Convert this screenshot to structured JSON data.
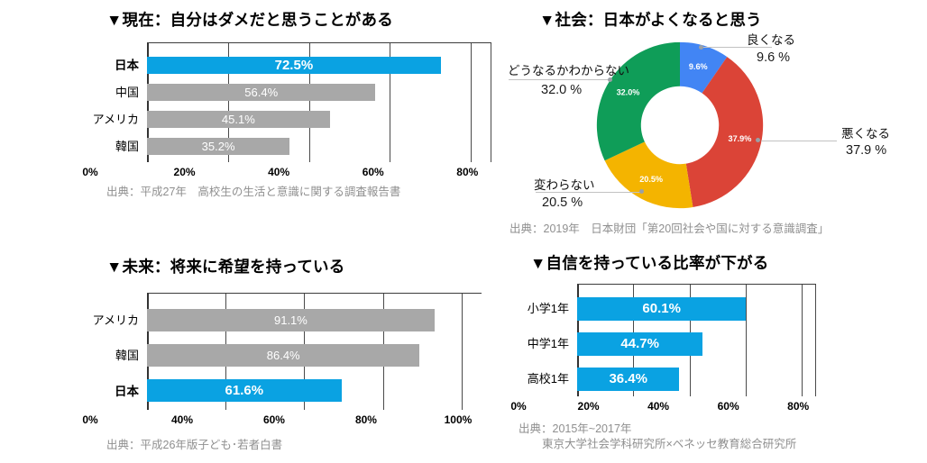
{
  "colors": {
    "accent_blue": "#0aa2e2",
    "bar_gray": "#a8a8a8",
    "donut_blue": "#4285f4",
    "donut_red": "#db4437",
    "donut_yellow": "#f4b400",
    "donut_green": "#0f9d58",
    "source_gray": "#8f8f8f",
    "grid_line": "#4a4a4a",
    "background": "#ffffff"
  },
  "chart_data": [
    {
      "type": "bar",
      "orientation": "horizontal",
      "title": "▼現在：自分はダメだと思うことがある",
      "categories": [
        "日本",
        "中国",
        "アメリカ",
        "韓国"
      ],
      "values": [
        72.5,
        56.4,
        45.1,
        35.2
      ],
      "value_labels": [
        "72.5%",
        "56.4%",
        "45.1%",
        "35.2%"
      ],
      "bar_colors": [
        "#0aa2e2",
        "#a8a8a8",
        "#a8a8a8",
        "#a8a8a8"
      ],
      "bold_categories": [
        0
      ],
      "ticks": [
        "0%",
        "20%",
        "40%",
        "60%",
        "80%"
      ],
      "xlim": [
        0,
        85
      ],
      "edge_line": true,
      "grid": true,
      "source": "出典：平成27年　高校生の生活と意識に関する調査報告書"
    },
    {
      "type": "donut",
      "title": "▼社会：日本がよくなると思う",
      "start_angle": "top",
      "direction": "clockwise",
      "segments": [
        {
          "label": "良くなる",
          "value": 9.6,
          "pct": "9.6 %",
          "slice_label": "9.6%",
          "color": "#4285f4"
        },
        {
          "label": "悪くなる",
          "value": 37.9,
          "pct": "37.9 %",
          "slice_label": "37.9%",
          "color": "#db4437"
        },
        {
          "label": "変わらない",
          "value": 20.5,
          "pct": "20.5 %",
          "slice_label": "20.5%",
          "color": "#f4b400"
        },
        {
          "label": "どうなるかわからない",
          "value": 32.0,
          "pct": "32.0 %",
          "slice_label": "32.0%",
          "color": "#0f9d58"
        }
      ],
      "source": "出典：2019年　日本財団「第20回社会や国に対する意識調査」"
    },
    {
      "type": "bar",
      "orientation": "horizontal",
      "title": "▼未来：将来に希望を持っている",
      "categories": [
        "アメリカ",
        "韓国",
        "日本"
      ],
      "values": [
        91.1,
        86.4,
        61.6
      ],
      "value_labels": [
        "91.1%",
        "86.4%",
        "61.6%"
      ],
      "bar_colors": [
        "#a8a8a8",
        "#a8a8a8",
        "#0aa2e2"
      ],
      "bold_categories": [
        2
      ],
      "ticks": [
        "0%",
        "40%",
        "60%",
        "80%",
        "100%"
      ],
      "xlim": [
        0,
        106
      ],
      "edge_line": false,
      "grid": true,
      "source": "出典：平成26年版子ども･若者白書"
    },
    {
      "type": "bar",
      "orientation": "horizontal",
      "title": "▼自信を持っている比率が下がる",
      "categories": [
        "小学1年",
        "中学1年",
        "高校1年"
      ],
      "values": [
        60.1,
        44.7,
        36.4
      ],
      "value_labels": [
        "60.1%",
        "44.7%",
        "36.4%"
      ],
      "bar_colors": [
        "#0aa2e2",
        "#0aa2e2",
        "#0aa2e2"
      ],
      "bold_categories": [],
      "ticks": [
        "0%",
        "20%",
        "40%",
        "60%",
        "80%"
      ],
      "xlim": [
        0,
        85
      ],
      "edge_line": true,
      "grid": true,
      "source_lines": [
        "出典：2015年~2017年",
        "東京大学社会学科研究所×ベネッセ教育総合研究所"
      ]
    }
  ]
}
